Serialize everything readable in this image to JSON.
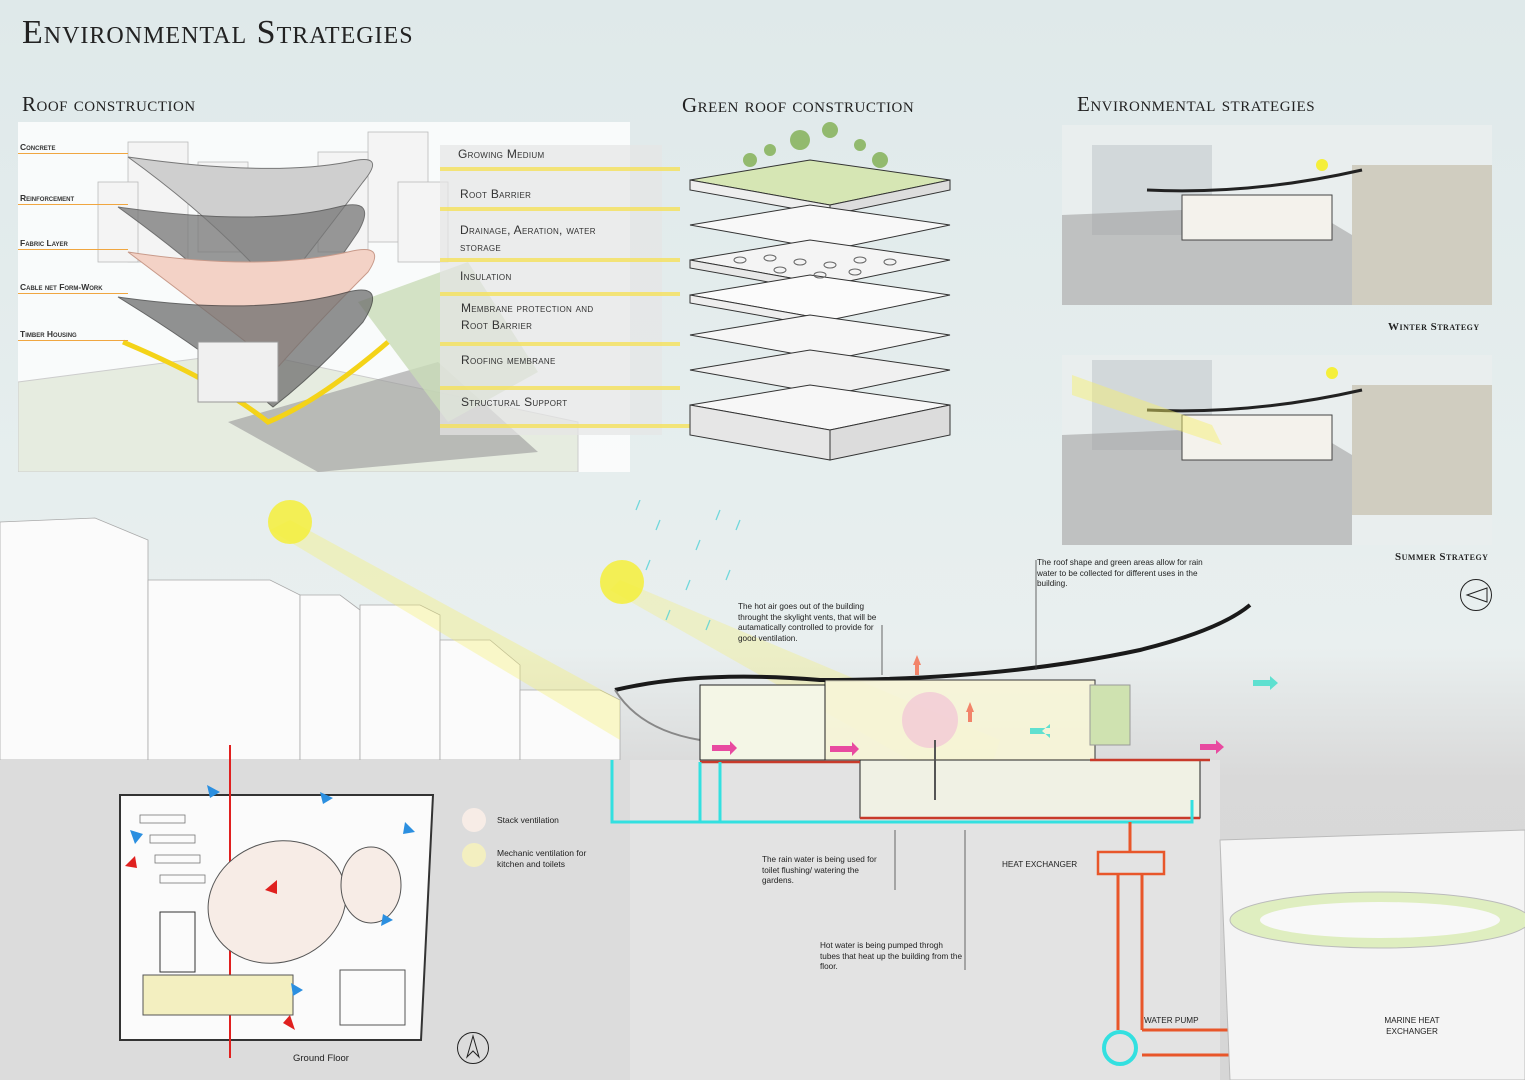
{
  "title": "Environmental Strategies",
  "roof": {
    "title": "Roof construction",
    "layers": [
      "Concrete",
      "Reinforcement",
      "Fabric Layer",
      "Cable net Form-Work",
      "Timber Housing"
    ]
  },
  "green_roof": {
    "title": "Green roof construction",
    "layers": [
      "Growing Medium",
      "Root Barrier",
      "Drainage, Aeration, water storage",
      "Insulation",
      "Membrane protection and Root Barrier",
      "Roofing membrane",
      "Structural Support"
    ]
  },
  "env": {
    "title": "Environmental strategies",
    "winter": "Winter Strategy",
    "summer": "Summer Strategy"
  },
  "section_notes": {
    "hot_air": "The hot air goes out of the building throught the skylight vents, that will be autamatically controlled to provide for good ventilation.",
    "roof_shape": "The roof shape and green areas allow for rain water to be collected for different uses in the building.",
    "rain_water": "The rain water is being used for toilet flushing/ watering the gardens.",
    "hot_water": "Hot water is being pumped throgh tubes that heat up the building from the floor.",
    "heat_exchanger": "HEAT EXCHANGER",
    "water_pump": "WATER PUMP",
    "marine": "MARINE HEAT EXCHANGER"
  },
  "legend": {
    "stack": "Stack ventilation",
    "mechanic": "Mechanic ventilation for kitchen and toilets",
    "stack_color": "#f7ece6",
    "mechanic_color": "#f3efc0"
  },
  "plan": {
    "caption": "Ground Floor"
  },
  "colors": {
    "sun": "#f5ef3a",
    "water": "#33e0e0",
    "pipe": "#e8562a",
    "cut": "#c83a2a",
    "arrow_red": "#e0201f",
    "arrow_blue": "#2b8fe0"
  }
}
